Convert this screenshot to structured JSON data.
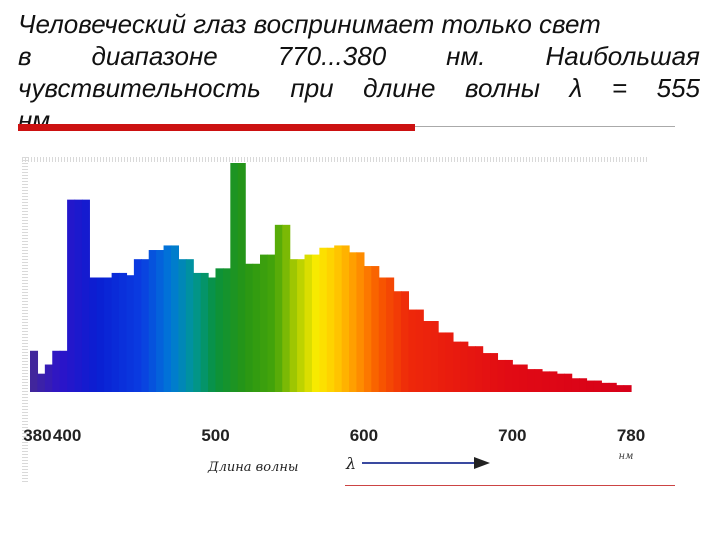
{
  "slide": {
    "text_lines": [
      "Человеческий глаз воспринимает только свет",
      [
        "в",
        "диапазоне",
        "770...380",
        "нм.",
        "Наибольшая"
      ],
      [
        "чувствительность",
        "при",
        "длине",
        "волны",
        "λ",
        "=",
        "555"
      ],
      "нм."
    ]
  },
  "chart_data": {
    "type": "bar",
    "xlabel": "Длина волны",
    "x_symbol": "λ",
    "x_unit": "нм",
    "xlim": [
      380,
      780
    ],
    "x_ticks": [
      380,
      400,
      500,
      600,
      700,
      780
    ],
    "ylabel": "",
    "ylim": [
      0,
      100
    ],
    "series": [
      {
        "x": [
          375,
          380,
          385,
          390,
          395,
          400,
          405,
          410,
          415,
          420,
          425,
          430,
          435,
          440,
          445,
          450,
          455,
          460,
          465,
          470,
          475,
          480,
          485,
          490,
          495,
          500,
          505,
          510,
          515,
          520,
          525,
          530,
          535,
          540,
          545,
          550,
          555,
          560,
          565,
          570,
          575,
          580,
          585,
          590,
          595,
          600,
          605,
          610,
          615,
          620,
          625,
          630,
          635,
          640,
          645,
          650,
          655,
          660,
          665,
          670,
          675,
          680,
          685,
          690,
          695,
          700,
          705,
          710,
          715,
          720,
          725,
          730,
          735,
          740,
          745,
          750,
          755,
          760,
          765,
          770,
          775
        ],
        "values": [
          18,
          8,
          12,
          18,
          18,
          84,
          84,
          84,
          50,
          50,
          50,
          52,
          52,
          51,
          58,
          58,
          62,
          62,
          64,
          64,
          58,
          58,
          52,
          52,
          50,
          54,
          54,
          100,
          100,
          56,
          56,
          60,
          60,
          73,
          73,
          58,
          58,
          60,
          60,
          63,
          63,
          64,
          64,
          61,
          61,
          55,
          55,
          50,
          50,
          44,
          44,
          36,
          36,
          31,
          31,
          26,
          26,
          22,
          22,
          20,
          20,
          17,
          17,
          14,
          14,
          12,
          12,
          10,
          10,
          9,
          9,
          8,
          8,
          6,
          6,
          5,
          5,
          4,
          4,
          3,
          3
        ]
      }
    ]
  }
}
